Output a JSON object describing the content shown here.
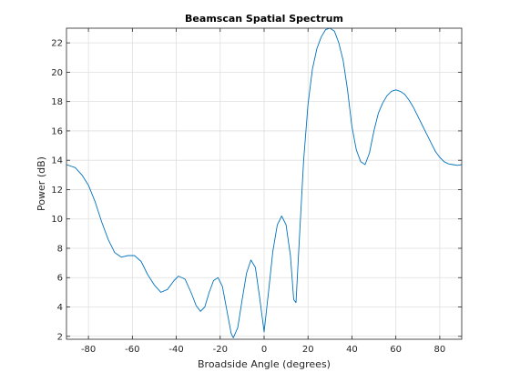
{
  "chart_data": {
    "type": "line",
    "title": "Beamscan Spatial Spectrum",
    "xlabel": "Broadside Angle (degrees)",
    "ylabel": "Power (dB)",
    "xlim": [
      -90,
      90
    ],
    "ylim": [
      1.8,
      23
    ],
    "xticks": [
      -80,
      -60,
      -40,
      -20,
      0,
      20,
      40,
      60,
      80
    ],
    "yticks": [
      2,
      4,
      6,
      8,
      10,
      12,
      14,
      16,
      18,
      20,
      22
    ],
    "grid": true,
    "line_color": "#0072bd",
    "series": [
      {
        "points": [
          [
            -90,
            13.7
          ],
          [
            -86,
            13.5
          ],
          [
            -83,
            13.0
          ],
          [
            -80,
            12.3
          ],
          [
            -77,
            11.2
          ],
          [
            -74,
            9.8
          ],
          [
            -71,
            8.6
          ],
          [
            -68,
            7.7
          ],
          [
            -65,
            7.4
          ],
          [
            -62,
            7.5
          ],
          [
            -59,
            7.5
          ],
          [
            -56,
            7.1
          ],
          [
            -53,
            6.2
          ],
          [
            -50,
            5.5
          ],
          [
            -47,
            5.0
          ],
          [
            -44,
            5.2
          ],
          [
            -41,
            5.8
          ],
          [
            -39,
            6.1
          ],
          [
            -36,
            5.9
          ],
          [
            -33,
            4.9
          ],
          [
            -31,
            4.1
          ],
          [
            -29,
            3.7
          ],
          [
            -27,
            4.0
          ],
          [
            -25,
            5.0
          ],
          [
            -23,
            5.8
          ],
          [
            -21,
            6.0
          ],
          [
            -19,
            5.4
          ],
          [
            -17,
            3.8
          ],
          [
            -15,
            2.2
          ],
          [
            -14,
            1.9
          ],
          [
            -12,
            2.6
          ],
          [
            -10,
            4.5
          ],
          [
            -8,
            6.3
          ],
          [
            -6,
            7.2
          ],
          [
            -4,
            6.7
          ],
          [
            -2,
            4.6
          ],
          [
            0,
            2.3
          ],
          [
            2,
            5.0
          ],
          [
            4,
            7.8
          ],
          [
            6,
            9.6
          ],
          [
            8,
            10.2
          ],
          [
            10,
            9.6
          ],
          [
            12,
            7.5
          ],
          [
            13.5,
            4.5
          ],
          [
            14.5,
            4.3
          ],
          [
            16,
            8.5
          ],
          [
            18,
            14.0
          ],
          [
            20,
            17.8
          ],
          [
            22,
            20.2
          ],
          [
            24,
            21.6
          ],
          [
            26,
            22.4
          ],
          [
            28,
            22.9
          ],
          [
            30,
            23.0
          ],
          [
            32,
            22.8
          ],
          [
            34,
            22.0
          ],
          [
            36,
            20.8
          ],
          [
            38,
            18.8
          ],
          [
            40,
            16.3
          ],
          [
            42,
            14.7
          ],
          [
            44,
            13.9
          ],
          [
            46,
            13.7
          ],
          [
            48,
            14.5
          ],
          [
            50,
            16.0
          ],
          [
            52,
            17.2
          ],
          [
            54,
            17.9
          ],
          [
            56,
            18.4
          ],
          [
            58,
            18.7
          ],
          [
            60,
            18.8
          ],
          [
            62,
            18.7
          ],
          [
            64,
            18.5
          ],
          [
            66,
            18.1
          ],
          [
            68,
            17.6
          ],
          [
            70,
            17.0
          ],
          [
            72,
            16.4
          ],
          [
            74,
            15.8
          ],
          [
            76,
            15.2
          ],
          [
            78,
            14.6
          ],
          [
            80,
            14.2
          ],
          [
            82,
            13.9
          ],
          [
            84,
            13.75
          ],
          [
            86,
            13.7
          ],
          [
            88,
            13.65
          ],
          [
            90,
            13.7
          ]
        ]
      }
    ]
  }
}
